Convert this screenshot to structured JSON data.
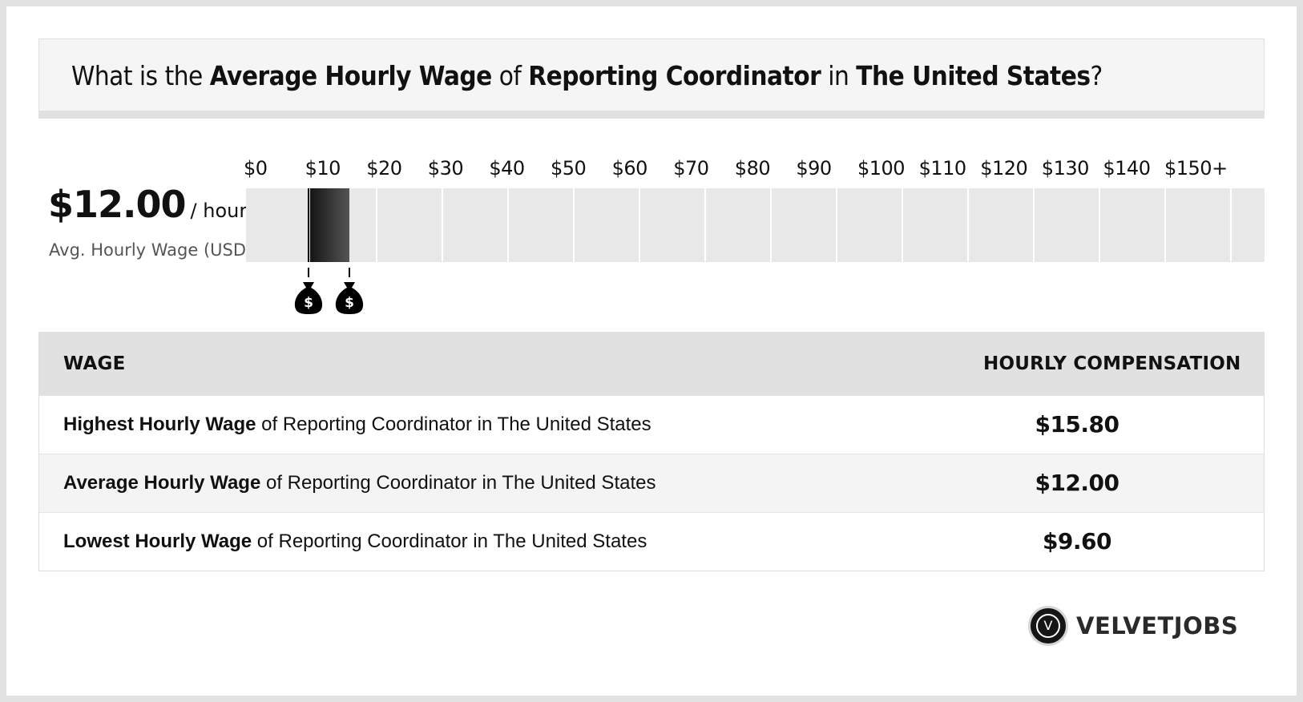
{
  "title": {
    "prefix": "What is the ",
    "metric": "Average Hourly Wage",
    "of": " of ",
    "job": "Reporting Coordinator",
    "in": " in ",
    "location": "The United States",
    "suffix": "?"
  },
  "summary": {
    "amount": "$12.00",
    "unit": "/ hour",
    "caption": "Avg. Hourly Wage (USD)"
  },
  "chart_data": {
    "type": "bar",
    "axis_ticks": [
      "$0",
      "$10",
      "$20",
      "$30",
      "$40",
      "$50",
      "$60",
      "$70",
      "$80",
      "$90",
      "$100",
      "$110",
      "$120",
      "$130",
      "$140",
      "$150+"
    ],
    "xlim": [
      0,
      150
    ],
    "range": {
      "low": 9.6,
      "average": 12.0,
      "high": 15.8
    },
    "markers": [
      "money-bag",
      "money-bag"
    ]
  },
  "table": {
    "header_wage": "WAGE",
    "header_comp": "HOURLY COMPENSATION",
    "rows": [
      {
        "bold": "Highest Hourly Wage",
        "rest": " of Reporting Coordinator in The United States",
        "value": "$15.80"
      },
      {
        "bold": "Average Hourly Wage",
        "rest": " of Reporting Coordinator in The United States",
        "value": "$12.00"
      },
      {
        "bold": "Lowest Hourly Wage",
        "rest": " of Reporting Coordinator in The United States",
        "value": "$9.60"
      }
    ]
  },
  "brand": {
    "name": "VELVETJOBS",
    "initial": "V"
  },
  "colors": {
    "bar_dark": "#151515",
    "bar_light": "#555555",
    "cell_bg": "#e8e8e8",
    "header_bg": "#e1e1e1"
  }
}
